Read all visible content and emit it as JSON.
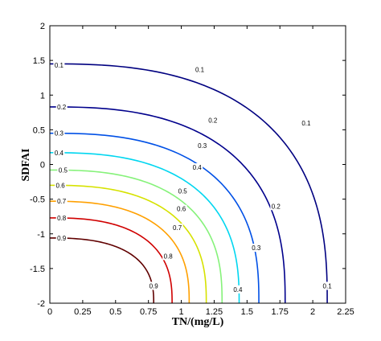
{
  "chart_data": {
    "type": "contour",
    "title": "",
    "xlabel": "TN/(mg/L)",
    "ylabel": "SDFAI",
    "xlim": [
      0,
      2.25
    ],
    "ylim": [
      -2,
      2
    ],
    "xticks": [
      "0",
      "0.25",
      "0.5",
      "0.75",
      "1",
      "1.25",
      "1.5",
      "1.75",
      "2",
      "2.25"
    ],
    "yticks": [
      "-2",
      "-1.5",
      "-1",
      "-0.5",
      "0",
      "0.5",
      "1",
      "1.5",
      "2"
    ],
    "grid": false,
    "levels": [
      {
        "level": "0.1",
        "color": "#000080",
        "y_left": 1.45,
        "x_bottom": 2.11,
        "labels": [
          {
            "text": "0.1",
            "x": 0.07,
            "y": 1.43
          },
          {
            "text": "0.1",
            "x": 1.14,
            "y": 1.37
          },
          {
            "text": "0.1",
            "x": 1.95,
            "y": 0.6
          },
          {
            "text": "0.1",
            "x": 2.11,
            "y": -1.75
          }
        ]
      },
      {
        "level": "0.2",
        "color": "#00008c",
        "y_left": 0.83,
        "x_bottom": 1.79,
        "labels": [
          {
            "text": "0.2",
            "x": 0.09,
            "y": 0.83
          },
          {
            "text": "0.2",
            "x": 1.24,
            "y": 0.64
          },
          {
            "text": "0.2",
            "x": 1.72,
            "y": -0.6
          }
        ]
      },
      {
        "level": "0.3",
        "color": "#0050e6",
        "y_left": 0.45,
        "x_bottom": 1.59,
        "labels": [
          {
            "text": "0.3",
            "x": 0.07,
            "y": 0.45
          },
          {
            "text": "0.3",
            "x": 1.16,
            "y": 0.27
          },
          {
            "text": "0.3",
            "x": 1.57,
            "y": -1.2
          }
        ]
      },
      {
        "level": "0.4",
        "color": "#00d6f0",
        "y_left": 0.17,
        "x_bottom": 1.44,
        "labels": [
          {
            "text": "0.4",
            "x": 0.07,
            "y": 0.17
          },
          {
            "text": "0.4",
            "x": 1.12,
            "y": -0.04
          },
          {
            "text": "0.4",
            "x": 1.43,
            "y": -1.8
          }
        ]
      },
      {
        "level": "0.5",
        "color": "#86f27a",
        "y_left": -0.08,
        "x_bottom": 1.31,
        "labels": [
          {
            "text": "0.5",
            "x": 0.1,
            "y": -0.08
          },
          {
            "text": "0.5",
            "x": 1.01,
            "y": -0.38
          }
        ]
      },
      {
        "level": "0.6",
        "color": "#d6e200",
        "y_left": -0.3,
        "x_bottom": 1.19,
        "labels": [
          {
            "text": "0.6",
            "x": 0.08,
            "y": -0.3
          },
          {
            "text": "0.6",
            "x": 1.0,
            "y": -0.64
          }
        ]
      },
      {
        "level": "0.7",
        "color": "#ffa000",
        "y_left": -0.53,
        "x_bottom": 1.06,
        "labels": [
          {
            "text": "0.7",
            "x": 0.09,
            "y": -0.53
          },
          {
            "text": "0.7",
            "x": 0.97,
            "y": -0.91
          }
        ]
      },
      {
        "level": "0.8",
        "color": "#d00000",
        "y_left": -0.77,
        "x_bottom": 0.93,
        "labels": [
          {
            "text": "0.8",
            "x": 0.09,
            "y": -0.77
          },
          {
            "text": "0.8",
            "x": 0.9,
            "y": -1.32
          }
        ]
      },
      {
        "level": "0.9",
        "color": "#600000",
        "y_left": -1.06,
        "x_bottom": 0.79,
        "labels": [
          {
            "text": "0.9",
            "x": 0.09,
            "y": -1.06
          },
          {
            "text": "0.9",
            "x": 0.79,
            "y": -1.75
          }
        ]
      }
    ]
  }
}
